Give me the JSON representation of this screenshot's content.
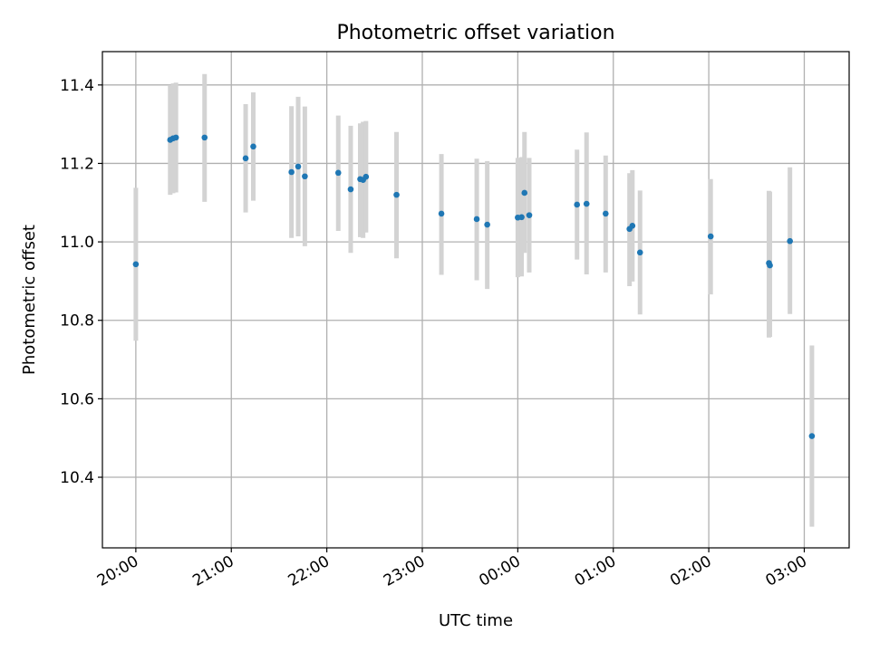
{
  "chart_data": {
    "type": "scatter",
    "title": "Photometric offset variation",
    "xlabel": "UTC time",
    "ylabel": "Photometric offset",
    "x_axis": {
      "unit": "hours since 20:00 UTC",
      "range": [
        -0.35,
        7.47
      ],
      "ticks": [
        {
          "value": 0,
          "label": "20:00"
        },
        {
          "value": 1,
          "label": "21:00"
        },
        {
          "value": 2,
          "label": "22:00"
        },
        {
          "value": 3,
          "label": "23:00"
        },
        {
          "value": 4,
          "label": "00:00"
        },
        {
          "value": 5,
          "label": "01:00"
        },
        {
          "value": 6,
          "label": "02:00"
        },
        {
          "value": 7,
          "label": "03:00"
        }
      ]
    },
    "y_axis": {
      "range": [
        10.22,
        11.485
      ],
      "ticks": [
        {
          "value": 10.4,
          "label": "10.4"
        },
        {
          "value": 10.6,
          "label": "10.6"
        },
        {
          "value": 10.8,
          "label": "10.8"
        },
        {
          "value": 11.0,
          "label": "11.0"
        },
        {
          "value": 11.2,
          "label": "11.2"
        },
        {
          "value": 11.4,
          "label": "11.4"
        }
      ]
    },
    "grid": true,
    "point_color": "#1f77b4",
    "errorbar_color": "#d3d3d3",
    "points": [
      {
        "x": 0.0,
        "y": 10.943,
        "lo": 10.748,
        "hi": 11.138
      },
      {
        "x": 0.36,
        "y": 11.26,
        "lo": 11.12,
        "hi": 11.4
      },
      {
        "x": 0.39,
        "y": 11.264,
        "lo": 11.124,
        "hi": 11.404
      },
      {
        "x": 0.42,
        "y": 11.266,
        "lo": 11.126,
        "hi": 11.406
      },
      {
        "x": 0.72,
        "y": 11.266,
        "lo": 11.102,
        "hi": 11.428
      },
      {
        "x": 1.15,
        "y": 11.213,
        "lo": 11.075,
        "hi": 11.351
      },
      {
        "x": 1.23,
        "y": 11.243,
        "lo": 11.105,
        "hi": 11.381
      },
      {
        "x": 1.63,
        "y": 11.178,
        "lo": 11.01,
        "hi": 11.346
      },
      {
        "x": 1.7,
        "y": 11.192,
        "lo": 11.014,
        "hi": 11.37
      },
      {
        "x": 1.77,
        "y": 11.167,
        "lo": 10.989,
        "hi": 11.345
      },
      {
        "x": 2.12,
        "y": 11.176,
        "lo": 11.028,
        "hi": 11.322
      },
      {
        "x": 2.25,
        "y": 11.134,
        "lo": 10.972,
        "hi": 11.296
      },
      {
        "x": 2.35,
        "y": 11.16,
        "lo": 11.012,
        "hi": 11.302
      },
      {
        "x": 2.38,
        "y": 11.158,
        "lo": 11.01,
        "hi": 11.306
      },
      {
        "x": 2.41,
        "y": 11.166,
        "lo": 11.024,
        "hi": 11.308
      },
      {
        "x": 2.73,
        "y": 11.12,
        "lo": 10.958,
        "hi": 11.28
      },
      {
        "x": 3.2,
        "y": 11.072,
        "lo": 10.916,
        "hi": 11.224
      },
      {
        "x": 3.57,
        "y": 11.058,
        "lo": 10.902,
        "hi": 11.212
      },
      {
        "x": 3.68,
        "y": 11.044,
        "lo": 10.88,
        "hi": 11.206
      },
      {
        "x": 4.0,
        "y": 11.062,
        "lo": 10.91,
        "hi": 11.214
      },
      {
        "x": 4.04,
        "y": 11.063,
        "lo": 10.912,
        "hi": 11.216
      },
      {
        "x": 4.07,
        "y": 11.125,
        "lo": 10.972,
        "hi": 11.28
      },
      {
        "x": 4.12,
        "y": 11.068,
        "lo": 10.922,
        "hi": 11.214
      },
      {
        "x": 4.62,
        "y": 11.095,
        "lo": 10.955,
        "hi": 11.235
      },
      {
        "x": 4.72,
        "y": 11.097,
        "lo": 10.917,
        "hi": 11.279
      },
      {
        "x": 4.92,
        "y": 11.072,
        "lo": 10.922,
        "hi": 11.22
      },
      {
        "x": 5.17,
        "y": 11.033,
        "lo": 10.887,
        "hi": 11.175
      },
      {
        "x": 5.2,
        "y": 11.041,
        "lo": 10.899,
        "hi": 11.183
      },
      {
        "x": 5.28,
        "y": 10.973,
        "lo": 10.815,
        "hi": 11.131
      },
      {
        "x": 6.02,
        "y": 11.014,
        "lo": 10.866,
        "hi": 11.16
      },
      {
        "x": 6.63,
        "y": 10.946,
        "lo": 10.756,
        "hi": 11.13
      },
      {
        "x": 6.64,
        "y": 10.94,
        "lo": 10.758,
        "hi": 11.128
      },
      {
        "x": 6.85,
        "y": 11.002,
        "lo": 10.816,
        "hi": 11.19
      },
      {
        "x": 7.08,
        "y": 10.505,
        "lo": 10.274,
        "hi": 10.736
      }
    ]
  }
}
